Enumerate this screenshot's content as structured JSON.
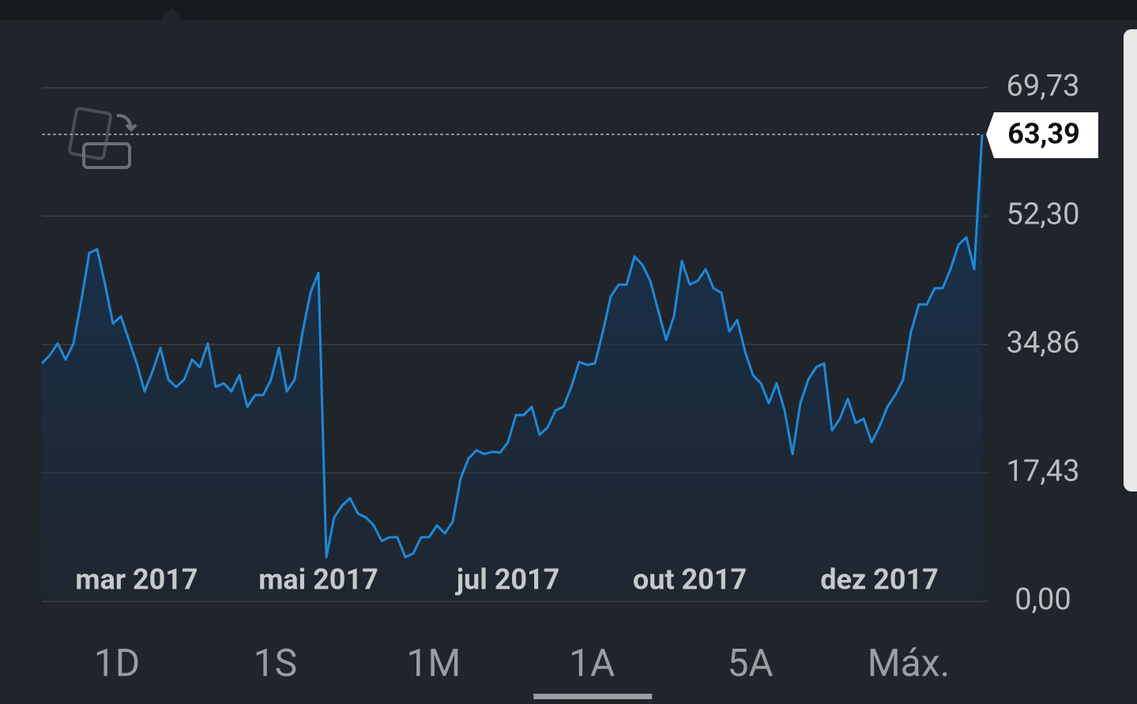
{
  "chart_data": {
    "type": "line",
    "categories": [
      null,
      null,
      null,
      null,
      null,
      null,
      null,
      null,
      null,
      null,
      null,
      null,
      "mar 2017",
      null,
      null,
      null,
      null,
      null,
      null,
      null,
      null,
      null,
      null,
      null,
      null,
      null,
      null,
      null,
      null,
      null,
      null,
      null,
      null,
      null,
      null,
      "mai 2017",
      null,
      null,
      null,
      null,
      null,
      null,
      null,
      null,
      null,
      null,
      null,
      null,
      null,
      null,
      null,
      null,
      null,
      null,
      null,
      null,
      null,
      null,
      null,
      "jul 2017",
      null,
      null,
      null,
      null,
      null,
      null,
      null,
      null,
      null,
      null,
      null,
      null,
      null,
      null,
      null,
      null,
      null,
      null,
      null,
      null,
      null,
      null,
      "out 2017",
      null,
      null,
      null,
      null,
      null,
      null,
      null,
      null,
      null,
      null,
      null,
      null,
      null,
      null,
      null,
      null,
      null,
      null,
      null,
      null,
      null,
      null,
      null,
      "dez 2017",
      null,
      null,
      null,
      null,
      null,
      null,
      null,
      null,
      null,
      null,
      null,
      null,
      null
    ],
    "values": [
      32.3,
      33.4,
      35.0,
      32.8,
      35.0,
      40.9,
      47.3,
      47.8,
      43.0,
      37.7,
      38.7,
      35.5,
      32.3,
      28.5,
      31.2,
      34.4,
      30.1,
      29.1,
      30.1,
      32.8,
      31.8,
      35.0,
      29.1,
      29.6,
      28.5,
      30.7,
      26.4,
      28.0,
      28.0,
      30.1,
      34.4,
      28.5,
      30.1,
      36.6,
      41.9,
      44.6,
      6.0,
      11.4,
      13.0,
      14.0,
      11.9,
      11.4,
      10.3,
      8.2,
      8.7,
      8.7,
      6.0,
      6.5,
      8.7,
      8.7,
      10.3,
      9.2,
      10.8,
      16.7,
      19.4,
      20.5,
      20.0,
      20.3,
      20.2,
      21.6,
      25.3,
      25.3,
      26.4,
      22.6,
      23.6,
      25.9,
      26.4,
      29.1,
      32.5,
      32.1,
      32.3,
      36.6,
      41.4,
      43.0,
      43.0,
      46.8,
      45.7,
      43.5,
      39.5,
      35.5,
      38.7,
      46.2,
      43.0,
      43.5,
      45.1,
      42.5,
      41.9,
      36.6,
      38.2,
      33.9,
      30.7,
      29.6,
      26.9,
      29.6,
      25.9,
      20.0,
      26.9,
      30.1,
      31.8,
      32.3,
      23.2,
      24.8,
      27.5,
      24.2,
      24.8,
      21.6,
      23.7,
      26.4,
      28.0,
      30.1,
      36.6,
      40.3,
      40.3,
      42.5,
      42.5,
      45.1,
      48.4,
      49.4,
      45.1,
      63.39
    ],
    "value_labels": [
      null,
      null,
      null,
      null,
      null,
      null,
      null,
      null,
      null,
      null,
      null,
      null,
      null,
      null,
      null,
      null,
      null,
      null,
      null,
      null,
      null,
      null,
      null,
      null,
      null,
      null,
      null,
      null,
      null,
      null,
      null,
      null,
      null,
      null,
      null,
      null,
      null,
      null,
      null,
      null,
      null,
      null,
      null,
      null,
      null,
      null,
      null,
      null,
      null,
      null,
      null,
      null,
      null,
      null,
      null,
      null,
      null,
      null,
      null,
      null,
      null,
      null,
      null,
      null,
      null,
      null,
      null,
      null,
      null,
      null,
      null,
      null,
      null,
      null,
      null,
      null,
      null,
      null,
      null,
      null,
      null,
      null,
      null,
      null,
      null,
      null,
      null,
      null,
      null,
      null,
      null,
      null,
      null,
      null,
      null,
      null,
      null,
      null,
      null,
      null,
      null,
      null,
      null,
      null,
      null,
      null,
      null,
      null,
      null,
      null,
      null,
      null,
      null,
      null,
      null,
      null,
      null,
      null,
      null,
      "63,39"
    ],
    "color": "#1e88d8",
    "ylim": [
      0,
      69.73
    ],
    "yticks": [
      {
        "value": 0,
        "label": "0,00"
      },
      {
        "value": 17.43,
        "label": "17,43"
      },
      {
        "value": 34.86,
        "label": "34,86"
      },
      {
        "value": 52.3,
        "label": "52,30"
      },
      {
        "value": 69.73,
        "label": "69,73"
      }
    ],
    "grid": true
  },
  "tabs": [
    "1D",
    "1S",
    "1M",
    "1A",
    "5A",
    "Máx."
  ],
  "selected_tab": 3
}
